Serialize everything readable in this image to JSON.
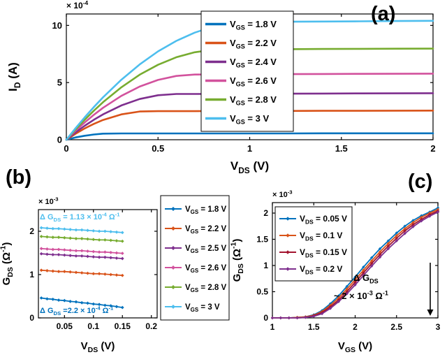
{
  "figure": {
    "background": "#ffffff",
    "panel_labels": {
      "a": "(a)",
      "b": "(b)",
      "c": "(c)"
    }
  },
  "colors": {
    "blue": "#0072BD",
    "orange": "#D95319",
    "purple": "#7E2F8E",
    "magenta": "#D2529D",
    "green": "#77AC30",
    "cyan": "#4DBEEE",
    "dark_red": "#A2142F"
  },
  "chart_data": [
    {
      "id": "panel-a",
      "type": "line",
      "title": "",
      "xlabel": "V_{DS} (V)",
      "ylabel": "I_{D} (A)",
      "scale_label": "× 10^{-4}",
      "xlim": [
        0,
        2
      ],
      "ylim": [
        0,
        11
      ],
      "xticks": [
        0,
        0.5,
        1,
        1.5,
        2
      ],
      "yticks": [
        0,
        5,
        10
      ],
      "grid": false,
      "legend_position": "inside-top-center",
      "x": [
        0,
        0.05,
        0.1,
        0.15,
        0.2,
        0.3,
        0.4,
        0.5,
        0.6,
        0.7,
        0.8,
        0.9,
        1,
        1.2,
        1.4,
        1.6,
        1.8,
        2
      ],
      "series": [
        {
          "name": "V_{GS} = 1.8 V",
          "color": "#0072BD",
          "values": [
            0,
            0.2,
            0.35,
            0.46,
            0.53,
            0.55,
            0.55,
            0.55,
            0.55,
            0.55,
            0.55,
            0.55,
            0.55,
            0.55,
            0.56,
            0.56,
            0.56,
            0.56
          ]
        },
        {
          "name": "V_{GS} = 2.2 V",
          "color": "#D95319",
          "values": [
            0,
            0.52,
            0.99,
            1.39,
            1.73,
            2.22,
            2.47,
            2.5,
            2.5,
            2.5,
            2.51,
            2.51,
            2.52,
            2.52,
            2.53,
            2.53,
            2.54,
            2.55
          ]
        },
        {
          "name": "V_{GS} = 2.4 V",
          "color": "#7E2F8E",
          "values": [
            0,
            0.64,
            1.22,
            1.75,
            2.22,
            3,
            3.56,
            3.89,
            4,
            4,
            4.01,
            4.02,
            4.02,
            4.03,
            4.04,
            4.05,
            4.06,
            4.07
          ]
        },
        {
          "name": "V_{GS} = 2.6 V",
          "color": "#D2529D",
          "values": [
            0,
            0.79,
            1.51,
            2.18,
            2.79,
            3.84,
            4.65,
            5.23,
            5.58,
            5.7,
            5.71,
            5.72,
            5.73,
            5.74,
            5.75,
            5.76,
            5.77,
            5.78
          ]
        },
        {
          "name": "V_{GS} = 2.8 V",
          "color": "#77AC30",
          "values": [
            0,
            0.9,
            1.75,
            2.54,
            3.28,
            4.59,
            5.69,
            6.56,
            7.22,
            7.65,
            7.87,
            7.9,
            7.91,
            7.92,
            7.94,
            7.95,
            7.96,
            7.97
          ]
        },
        {
          "name": "V_{GS} = 3 V",
          "color": "#4DBEEE",
          "values": [
            0,
            1,
            1.96,
            2.86,
            3.71,
            5.25,
            6.59,
            7.73,
            8.65,
            9.37,
            9.89,
            10.2,
            10.3,
            10.32,
            10.34,
            10.36,
            10.38,
            10.4
          ]
        }
      ],
      "annotations": []
    },
    {
      "id": "panel-b",
      "type": "line",
      "title": "",
      "xlabel": "V_{DS} (V)",
      "ylabel": "G_{DS} (Ω^{-1})",
      "scale_label": "× 10^{-3}",
      "xlim": [
        0.005,
        0.21
      ],
      "ylim": [
        0,
        2.5
      ],
      "xticks": [
        0.05,
        0.1,
        0.15,
        0.2
      ],
      "yticks": [
        0,
        1,
        2
      ],
      "grid": false,
      "legend_position": "outside-right",
      "x": [
        0.01,
        0.02,
        0.03,
        0.04,
        0.05,
        0.06,
        0.07,
        0.08,
        0.09,
        0.1,
        0.11,
        0.12,
        0.13,
        0.14,
        0.15
      ],
      "series": [
        {
          "name": "V_{GS} = 1.8 V",
          "color": "#0072BD",
          "values": [
            0.46,
            0.44,
            0.43,
            0.41,
            0.4,
            0.38,
            0.37,
            0.35,
            0.34,
            0.32,
            0.31,
            0.29,
            0.28,
            0.26,
            0.24
          ]
        },
        {
          "name": "V_{GS} = 2.2 V",
          "color": "#D95319",
          "values": [
            1.1,
            1.09,
            1.08,
            1.07,
            1.07,
            1.06,
            1.05,
            1.04,
            1.03,
            1.02,
            1.02,
            1.01,
            1,
            0.99,
            0.98
          ]
        },
        {
          "name": "V_{GS} = 2.5 V",
          "color": "#7E2F8E",
          "values": [
            1.48,
            1.47,
            1.46,
            1.46,
            1.45,
            1.44,
            1.43,
            1.43,
            1.42,
            1.41,
            1.4,
            1.4,
            1.39,
            1.38,
            1.37
          ]
        },
        {
          "name": "V_{GS} = 2.6 V",
          "color": "#D2529D",
          "values": [
            1.6,
            1.59,
            1.58,
            1.58,
            1.57,
            1.56,
            1.55,
            1.55,
            1.54,
            1.53,
            1.52,
            1.52,
            1.51,
            1.5,
            1.49
          ]
        },
        {
          "name": "V_{GS} = 2.8 V",
          "color": "#77AC30",
          "values": [
            1.88,
            1.87,
            1.86,
            1.86,
            1.85,
            1.84,
            1.83,
            1.83,
            1.82,
            1.81,
            1.8,
            1.8,
            1.79,
            1.78,
            1.77
          ]
        },
        {
          "name": "V_{GS} = 3 V",
          "color": "#4DBEEE",
          "values": [
            2.08,
            2.07,
            2.06,
            2.06,
            2.05,
            2.04,
            2.03,
            2.03,
            2.02,
            2.01,
            2,
            2,
            1.99,
            1.98,
            1.97
          ]
        }
      ],
      "annotations": [
        {
          "text": "Δ G_{DS} = 1.13 × 10^{-4} Ω^{-1}",
          "color": "#4DBEEE"
        },
        {
          "text": "Δ G_{DS} =2.2 × 10^{-4} Ω^{-1}",
          "color": "#0072BD"
        }
      ]
    },
    {
      "id": "panel-c",
      "type": "line",
      "title": "",
      "xlabel": "V_{GS} (V)",
      "ylabel": "G_{DS} (Ω^{-1})",
      "scale_label": "× 10^{-3}",
      "xlim": [
        1,
        3
      ],
      "ylim": [
        0,
        2.2
      ],
      "xticks": [
        1,
        1.5,
        2,
        2.5,
        3
      ],
      "yticks": [
        0,
        0.5,
        1,
        1.5,
        2
      ],
      "grid": false,
      "legend_position": "inside-top-left",
      "x": [
        1,
        1.1,
        1.2,
        1.3,
        1.4,
        1.5,
        1.6,
        1.7,
        1.8,
        1.9,
        2,
        2.1,
        2.2,
        2.3,
        2.4,
        2.5,
        2.6,
        2.7,
        2.8,
        2.9,
        3
      ],
      "series": [
        {
          "name": "V_{DS} = 0.05 V",
          "color": "#0072BD",
          "values": [
            0,
            0,
            0,
            0.01,
            0.02,
            0.06,
            0.14,
            0.27,
            0.42,
            0.6,
            0.78,
            0.97,
            1.15,
            1.32,
            1.47,
            1.62,
            1.75,
            1.86,
            1.95,
            2.02,
            2.1
          ]
        },
        {
          "name": "V_{DS} = 0.1 V",
          "color": "#D95319",
          "values": [
            0,
            0,
            0,
            0.01,
            0.02,
            0.05,
            0.12,
            0.24,
            0.38,
            0.55,
            0.73,
            0.91,
            1.09,
            1.26,
            1.42,
            1.57,
            1.7,
            1.82,
            1.92,
            2,
            2.07
          ]
        },
        {
          "name": "V_{DS} = 0.15 V",
          "color": "#A2142F",
          "values": [
            0,
            0,
            0,
            0,
            0.01,
            0.04,
            0.1,
            0.21,
            0.34,
            0.5,
            0.68,
            0.86,
            1.04,
            1.21,
            1.37,
            1.52,
            1.66,
            1.78,
            1.88,
            1.97,
            2.04
          ]
        },
        {
          "name": "V_{DS} = 0.2 V",
          "color": "#7E2F8E",
          "values": [
            0,
            0,
            0,
            0,
            0.01,
            0.03,
            0.08,
            0.18,
            0.31,
            0.46,
            0.63,
            0.81,
            0.99,
            1.16,
            1.32,
            1.47,
            1.61,
            1.74,
            1.85,
            1.94,
            2.02
          ]
        }
      ],
      "annotations": [
        {
          "text": "Δ G_{DS}",
          "color": "#000000"
        },
        {
          "text": "~ 2 × 10^{-3} Ω^{-1}",
          "color": "#000000"
        }
      ]
    }
  ]
}
